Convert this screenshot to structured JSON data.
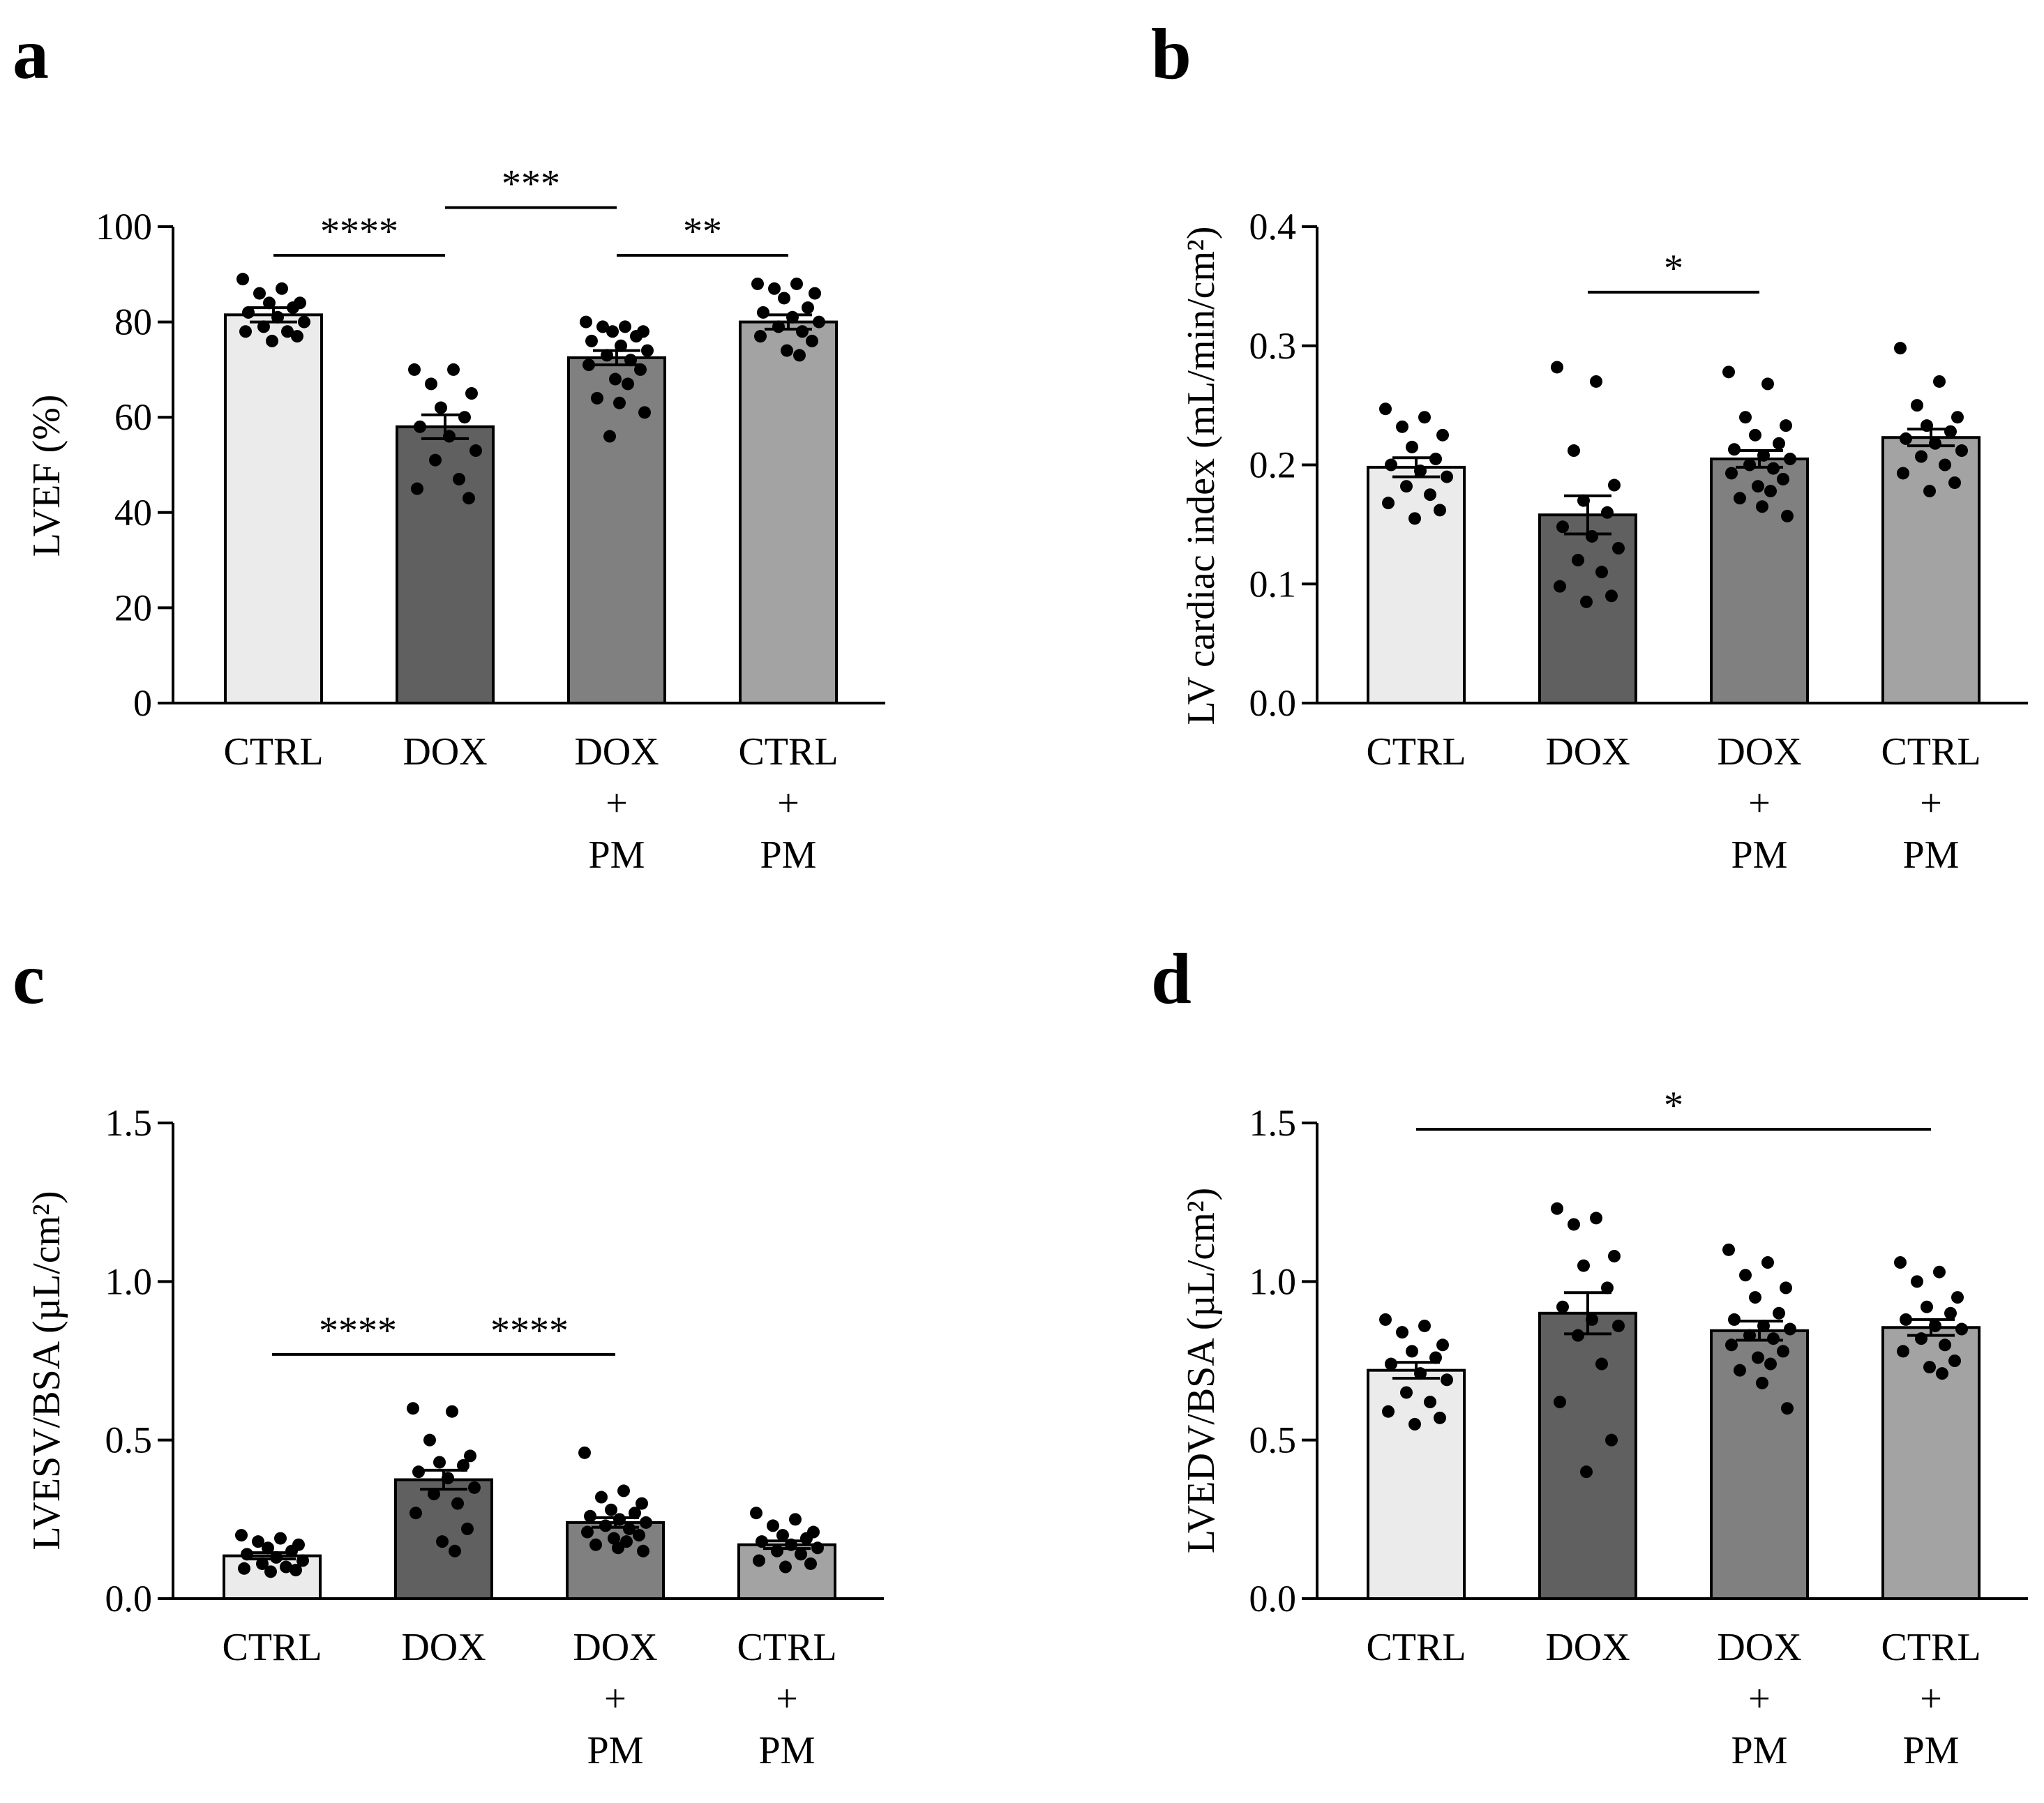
{
  "figure": {
    "panels": [
      "a",
      "b",
      "c",
      "d"
    ]
  },
  "colors": {
    "CTRL": "#ebebeb",
    "DOX": "#606060",
    "DOX + PM": "#808080",
    "CTRL + PM": "#a3a3a3",
    "axis": "#000000",
    "dots": "#000000"
  },
  "chart_data": [
    {
      "panel": "a",
      "type": "bar",
      "title": "",
      "xlabel": "",
      "ylabel": "LVEF (%)",
      "ylim": [
        0,
        100
      ],
      "yticks": [
        0,
        20,
        40,
        60,
        80,
        100
      ],
      "tick_labels": [
        "0",
        "20",
        "40",
        "60",
        "80",
        "100"
      ],
      "categories": [
        "CTRL",
        "DOX",
        "DOX + PM",
        "CTRL + PM"
      ],
      "category_lines": [
        [
          "CTRL"
        ],
        [
          "DOX"
        ],
        [
          "DOX",
          "+",
          "PM"
        ],
        [
          "CTRL",
          "+",
          "PM"
        ]
      ],
      "values": [
        81.5,
        58,
        72.5,
        80
      ],
      "sem": [
        1.5,
        2.5,
        1.5,
        1.5
      ],
      "points": [
        [
          89,
          87,
          86,
          84,
          84,
          83,
          82,
          81,
          80,
          79,
          78,
          78,
          77,
          76
        ],
        [
          70,
          70,
          67,
          65,
          62,
          60,
          58,
          56,
          53,
          51,
          47,
          45,
          43
        ],
        [
          80,
          79,
          79,
          78,
          78,
          77,
          76,
          75,
          74,
          73,
          72,
          71,
          70,
          68,
          67,
          64,
          63,
          61,
          56
        ],
        [
          88,
          88,
          87,
          86,
          85,
          83,
          82,
          81,
          80,
          79,
          78,
          77,
          76,
          74,
          73
        ]
      ],
      "significance": [
        {
          "from": 0,
          "to": 1,
          "label": "****",
          "level": 94
        },
        {
          "from": 1,
          "to": 2,
          "label": "***",
          "level": 104
        },
        {
          "from": 2,
          "to": 3,
          "label": "**",
          "level": 94
        }
      ]
    },
    {
      "panel": "b",
      "type": "bar",
      "title": "",
      "xlabel": "",
      "ylabel": "LV cardiac index (mL/min/cm²)",
      "ylim": [
        0,
        0.4
      ],
      "yticks": [
        0,
        0.1,
        0.2,
        0.3,
        0.4
      ],
      "tick_labels": [
        "0.0",
        "0.1",
        "0.2",
        "0.3",
        "0.4"
      ],
      "categories": [
        "CTRL",
        "DOX",
        "DOX + PM",
        "CTRL + PM"
      ],
      "category_lines": [
        [
          "CTRL"
        ],
        [
          "DOX"
        ],
        [
          "DOX",
          "+",
          "PM"
        ],
        [
          "CTRL",
          "+",
          "PM"
        ]
      ],
      "values": [
        0.198,
        0.158,
        0.205,
        0.223
      ],
      "sem": [
        0.008,
        0.016,
        0.007,
        0.007
      ],
      "points": [
        [
          0.247,
          0.24,
          0.232,
          0.225,
          0.215,
          0.205,
          0.2,
          0.195,
          0.19,
          0.182,
          0.175,
          0.168,
          0.162,
          0.155
        ],
        [
          0.282,
          0.27,
          0.212,
          0.183,
          0.17,
          0.16,
          0.148,
          0.14,
          0.13,
          0.12,
          0.11,
          0.098,
          0.09,
          0.085
        ],
        [
          0.278,
          0.268,
          0.24,
          0.233,
          0.225,
          0.218,
          0.213,
          0.208,
          0.205,
          0.2,
          0.197,
          0.193,
          0.188,
          0.182,
          0.178,
          0.172,
          0.165,
          0.157
        ],
        [
          0.298,
          0.27,
          0.25,
          0.24,
          0.233,
          0.228,
          0.222,
          0.218,
          0.212,
          0.207,
          0.2,
          0.193,
          0.185,
          0.178
        ]
      ],
      "significance": [
        {
          "from": 1,
          "to": 2,
          "label": "*",
          "level": 0.345
        }
      ]
    },
    {
      "panel": "c",
      "type": "bar",
      "title": "",
      "xlabel": "",
      "ylabel": "LVESV/BSA (µL/cm²)",
      "ylim": [
        0,
        1.5
      ],
      "yticks": [
        0,
        0.5,
        1,
        1.5
      ],
      "tick_labels": [
        "0.0",
        "0.5",
        "1.0",
        "1.5"
      ],
      "categories": [
        "CTRL",
        "DOX",
        "DOX + PM",
        "CTRL + PM"
      ],
      "category_lines": [
        [
          "CTRL"
        ],
        [
          "DOX"
        ],
        [
          "DOX",
          "+",
          "PM"
        ],
        [
          "CTRL",
          "+",
          "PM"
        ]
      ],
      "values": [
        0.135,
        0.375,
        0.24,
        0.17
      ],
      "sem": [
        0.01,
        0.03,
        0.015,
        0.012
      ],
      "points": [
        [
          0.2,
          0.19,
          0.18,
          0.17,
          0.16,
          0.15,
          0.14,
          0.13,
          0.12,
          0.11,
          0.1,
          0.095,
          0.09,
          0.085
        ],
        [
          0.6,
          0.59,
          0.5,
          0.45,
          0.43,
          0.42,
          0.4,
          0.38,
          0.35,
          0.33,
          0.3,
          0.27,
          0.22,
          0.18,
          0.15
        ],
        [
          0.46,
          0.34,
          0.32,
          0.3,
          0.28,
          0.27,
          0.26,
          0.25,
          0.24,
          0.23,
          0.22,
          0.21,
          0.2,
          0.19,
          0.18,
          0.17,
          0.16,
          0.15
        ],
        [
          0.27,
          0.25,
          0.23,
          0.21,
          0.2,
          0.19,
          0.18,
          0.17,
          0.16,
          0.15,
          0.14,
          0.12,
          0.11,
          0.1
        ]
      ],
      "significance": [
        {
          "from": 0,
          "to": 1,
          "label": "****",
          "level": 0.77
        },
        {
          "from": 1,
          "to": 2,
          "label": "****",
          "level": 0.77
        }
      ]
    },
    {
      "panel": "d",
      "type": "bar",
      "title": "",
      "xlabel": "",
      "ylabel": "LVEDV/BSA (µL/cm²)",
      "ylim": [
        0,
        1.5
      ],
      "yticks": [
        0,
        0.5,
        1,
        1.5
      ],
      "tick_labels": [
        "0.0",
        "0.5",
        "1.0",
        "1.5"
      ],
      "categories": [
        "CTRL",
        "DOX",
        "DOX + PM",
        "CTRL + PM"
      ],
      "category_lines": [
        [
          "CTRL"
        ],
        [
          "DOX"
        ],
        [
          "DOX",
          "+",
          "PM"
        ],
        [
          "CTRL",
          "+",
          "PM"
        ]
      ],
      "values": [
        0.72,
        0.9,
        0.845,
        0.855
      ],
      "sem": [
        0.025,
        0.065,
        0.03,
        0.025
      ],
      "points": [
        [
          0.88,
          0.86,
          0.84,
          0.8,
          0.78,
          0.76,
          0.74,
          0.71,
          0.69,
          0.65,
          0.62,
          0.59,
          0.57,
          0.55
        ],
        [
          1.23,
          1.2,
          1.18,
          1.08,
          1.05,
          0.98,
          0.92,
          0.88,
          0.86,
          0.83,
          0.74,
          0.62,
          0.5,
          0.4
        ],
        [
          1.1,
          1.06,
          1.02,
          0.98,
          0.95,
          0.9,
          0.88,
          0.86,
          0.85,
          0.83,
          0.82,
          0.8,
          0.78,
          0.76,
          0.74,
          0.72,
          0.68,
          0.6
        ],
        [
          1.06,
          1.03,
          1.0,
          0.95,
          0.92,
          0.9,
          0.88,
          0.86,
          0.85,
          0.82,
          0.8,
          0.78,
          0.75,
          0.73,
          0.71
        ]
      ],
      "significance": [
        {
          "from": 0,
          "to": 3,
          "label": "*",
          "level": 1.48
        }
      ]
    }
  ]
}
